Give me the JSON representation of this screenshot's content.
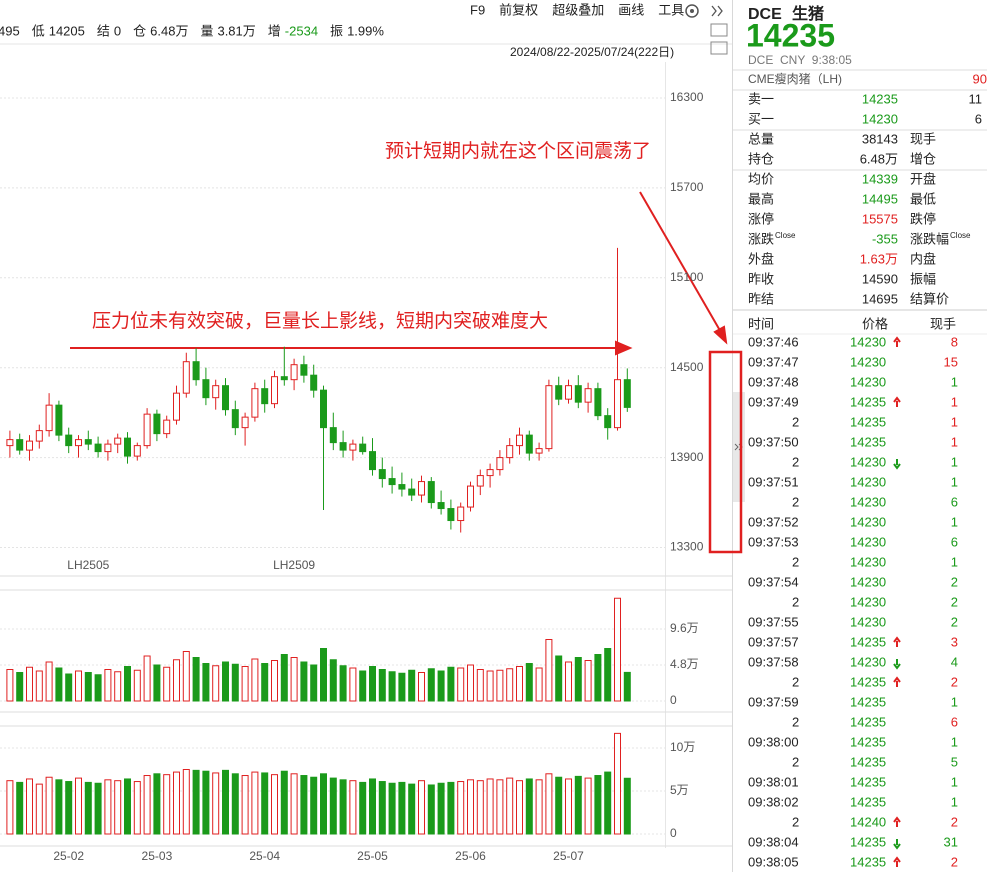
{
  "toolbar": {
    "items": [
      "F9",
      "前复权",
      "超级叠加",
      "画线",
      "工具"
    ]
  },
  "quote_bar": [
    {
      "value": "495"
    },
    {
      "label": "低",
      "value": "14205"
    },
    {
      "label": "结",
      "value": "0"
    },
    {
      "label": "仓",
      "value": "6.48万"
    },
    {
      "label": "量",
      "value": "3.81万"
    },
    {
      "label": "增",
      "value": "-2534",
      "color": "#1a9a1a"
    },
    {
      "label": "振",
      "value": "1.99%"
    }
  ],
  "date_range": "2024/08/22-2025/07/24(222日)",
  "chart_data": [
    {
      "type": "candlestick",
      "up_color": "#e02020",
      "down_color": "#1a9a1a",
      "categories": [
        null,
        null,
        null,
        null,
        null,
        null,
        "25-02",
        null,
        null,
        null,
        null,
        null,
        null,
        null,
        null,
        "25-03",
        null,
        null,
        null,
        null,
        null,
        null,
        null,
        null,
        null,
        null,
        "25-04",
        null,
        null,
        null,
        null,
        null,
        null,
        null,
        null,
        null,
        null,
        "25-05",
        null,
        null,
        null,
        null,
        null,
        null,
        null,
        null,
        null,
        "25-06",
        null,
        null,
        null,
        null,
        null,
        null,
        null,
        null,
        null,
        "25-07",
        null,
        null,
        null,
        null,
        null,
        null
      ],
      "open": [
        13980,
        14020,
        13950,
        14010,
        14080,
        14250,
        14050,
        13980,
        14020,
        13990,
        13940,
        13990,
        14030,
        13910,
        13980,
        14190,
        14060,
        14150,
        14330,
        14540,
        14420,
        14300,
        14380,
        14220,
        14100,
        14170,
        14360,
        14260,
        14440,
        14420,
        14520,
        14450,
        14350,
        14100,
        14000,
        13950,
        13990,
        13940,
        13820,
        13760,
        13720,
        13690,
        13650,
        13740,
        13600,
        13560,
        13480,
        13570,
        13710,
        13780,
        13820,
        13900,
        13980,
        14050,
        13930,
        13960,
        14380,
        14290,
        14380,
        14270,
        14360,
        14180,
        14100,
        14420
      ],
      "high": [
        14080,
        14060,
        14050,
        14120,
        14330,
        14280,
        14100,
        14050,
        14080,
        14040,
        14020,
        14060,
        14070,
        14000,
        14230,
        14220,
        14180,
        14380,
        14600,
        14630,
        14500,
        14420,
        14430,
        14280,
        14200,
        14400,
        14420,
        14480,
        14640,
        14560,
        14580,
        14520,
        14380,
        14200,
        14080,
        14020,
        14040,
        14030,
        13900,
        13840,
        13800,
        13760,
        13780,
        13770,
        13680,
        13620,
        13600,
        13740,
        13820,
        13860,
        13950,
        14030,
        14100,
        14080,
        14000,
        14420,
        14440,
        14420,
        14450,
        14400,
        14400,
        14230,
        15300,
        14495
      ],
      "low": [
        13900,
        13920,
        13880,
        13960,
        14040,
        14010,
        13930,
        13900,
        13950,
        13900,
        13880,
        13930,
        13860,
        13880,
        13960,
        14010,
        14030,
        14120,
        14300,
        14380,
        14250,
        14220,
        14180,
        14050,
        13980,
        14140,
        14200,
        14230,
        14380,
        14350,
        14400,
        14300,
        13550,
        13950,
        13900,
        13880,
        13920,
        13780,
        13700,
        13660,
        13640,
        13610,
        13600,
        13560,
        13520,
        13420,
        13400,
        13540,
        13650,
        13700,
        13780,
        13860,
        13920,
        13880,
        13880,
        13940,
        14250,
        14260,
        14230,
        14200,
        14150,
        14020,
        14080,
        14205
      ],
      "close": [
        14020,
        13950,
        14010,
        14080,
        14250,
        14050,
        13980,
        14020,
        13990,
        13940,
        13990,
        14030,
        13910,
        13980,
        14190,
        14060,
        14150,
        14330,
        14540,
        14420,
        14300,
        14380,
        14220,
        14100,
        14170,
        14360,
        14260,
        14440,
        14420,
        14520,
        14450,
        14350,
        14100,
        14000,
        13950,
        13990,
        13940,
        13820,
        13760,
        13720,
        13690,
        13650,
        13740,
        13600,
        13560,
        13480,
        13570,
        13710,
        13780,
        13820,
        13900,
        13980,
        14050,
        13930,
        13960,
        14380,
        14290,
        14380,
        14270,
        14360,
        14180,
        14100,
        14420,
        14235
      ],
      "ylim": [
        13250,
        16520
      ],
      "yticks": [
        13300,
        13900,
        14500,
        15100,
        15700,
        16300
      ],
      "grid": true,
      "contract_labels": [
        {
          "index": 8,
          "label": "LH2505"
        },
        {
          "index": 29,
          "label": "LH2509"
        }
      ],
      "annotations": [
        "预计短期内就在这个区间震荡了",
        "压力位未有效突破，巨量长上影线，短期内突破难度大"
      ]
    },
    {
      "type": "bar",
      "name": "volume",
      "values": [
        42000,
        38000,
        45000,
        40000,
        52000,
        44000,
        36000,
        40000,
        38000,
        35000,
        42000,
        39000,
        46000,
        41000,
        60000,
        48000,
        45000,
        55000,
        66000,
        58000,
        50000,
        47000,
        52000,
        49000,
        46000,
        56000,
        50000,
        54000,
        62000,
        58000,
        52000,
        48000,
        70000,
        55000,
        47000,
        44000,
        40000,
        46000,
        42000,
        39000,
        37000,
        41000,
        38000,
        43000,
        40000,
        45000,
        44000,
        48000,
        42000,
        40000,
        41000,
        43000,
        46000,
        50000,
        44000,
        82000,
        60000,
        52000,
        58000,
        54000,
        62000,
        70000,
        137000,
        38143
      ],
      "ylim": [
        0,
        140000
      ],
      "yticks": [
        0,
        {
          "value": 48000,
          "label": "4.8万"
        },
        {
          "value": 96000,
          "label": "9.6万"
        }
      ]
    },
    {
      "type": "bar",
      "name": "open-interest",
      "values": [
        62000,
        60000,
        64000,
        58000,
        66000,
        63000,
        61000,
        65000,
        60000,
        59000,
        63000,
        62000,
        64000,
        61000,
        68000,
        70000,
        69000,
        72000,
        75000,
        74000,
        73000,
        71000,
        74000,
        70000,
        68000,
        72000,
        71000,
        69000,
        73000,
        70000,
        68000,
        66000,
        70000,
        65000,
        63000,
        62000,
        60000,
        64000,
        61000,
        59000,
        60000,
        58000,
        62000,
        57000,
        59000,
        60000,
        61000,
        63000,
        62000,
        64000,
        63000,
        65000,
        62000,
        64000,
        63000,
        70000,
        66000,
        64000,
        67000,
        65000,
        68000,
        72000,
        117000,
        64800
      ],
      "ylim": [
        0,
        120000
      ],
      "yticks": [
        0,
        {
          "value": 50000,
          "label": "5万"
        },
        {
          "value": 100000,
          "label": "10万"
        }
      ]
    }
  ],
  "side_panel": {
    "exchange": "DCE",
    "name": "生猪",
    "price": "14235",
    "meta": "DCE  CNY  9:38:05",
    "link": {
      "label": "CME瘦肉猪（LH)",
      "value": "90"
    },
    "quote_rows": [
      {
        "label": "卖一",
        "value": "14235",
        "color": "#1a9a1a",
        "extra": "11"
      },
      {
        "label": "买一",
        "value": "14230",
        "color": "#1a9a1a",
        "extra": "6"
      },
      {
        "label": "总量",
        "value": "38143",
        "color": "#222222",
        "right": "现手"
      },
      {
        "label": "持仓",
        "value": "6.48万",
        "color": "#222222",
        "right": "增仓"
      },
      {
        "label": "均价",
        "value": "14339",
        "color": "#1a9a1a",
        "right": "开盘"
      },
      {
        "label": "最高",
        "value": "14495",
        "color": "#1a9a1a",
        "right": "最低"
      },
      {
        "label": "涨停",
        "value": "15575",
        "color": "#e02020",
        "right": "跌停"
      },
      {
        "label": "涨跌",
        "sup": "Close",
        "value": "-355",
        "color": "#1a9a1a",
        "right": "涨跌幅",
        "right_sup": "Close"
      },
      {
        "label": "外盘",
        "value": "1.63万",
        "color": "#e02020",
        "right": "内盘"
      },
      {
        "label": "昨收",
        "value": "14590",
        "color": "#222222",
        "right": "振幅"
      },
      {
        "label": "昨结",
        "value": "14695",
        "color": "#222222",
        "right": "结算价"
      }
    ],
    "tick_header": [
      "时间",
      "价格",
      "现手"
    ],
    "ticks": [
      {
        "time": "09:37:46",
        "price": "14230",
        "dir": "up",
        "hand": "8",
        "color": "#e02020"
      },
      {
        "time": "09:37:47",
        "price": "14230",
        "hand": "15",
        "color": "#e02020"
      },
      {
        "time": "09:37:48",
        "price": "14230",
        "hand": "1",
        "color": "#1a9a1a"
      },
      {
        "time": "09:37:49",
        "price": "14235",
        "dir": "up",
        "hand": "1",
        "color": "#e02020"
      },
      {
        "sub": "2",
        "price": "14235",
        "hand": "1",
        "color": "#e02020"
      },
      {
        "time": "09:37:50",
        "price": "14235",
        "hand": "1",
        "color": "#e02020"
      },
      {
        "sub": "2",
        "price": "14230",
        "dir": "down",
        "hand": "1",
        "color": "#1a9a1a"
      },
      {
        "time": "09:37:51",
        "price": "14230",
        "hand": "1",
        "color": "#1a9a1a"
      },
      {
        "sub": "2",
        "price": "14230",
        "hand": "6",
        "color": "#1a9a1a"
      },
      {
        "time": "09:37:52",
        "price": "14230",
        "hand": "1",
        "color": "#1a9a1a"
      },
      {
        "time": "09:37:53",
        "price": "14230",
        "hand": "6",
        "color": "#1a9a1a"
      },
      {
        "sub": "2",
        "price": "14230",
        "hand": "1",
        "color": "#1a9a1a"
      },
      {
        "time": "09:37:54",
        "price": "14230",
        "hand": "2",
        "color": "#1a9a1a"
      },
      {
        "sub": "2",
        "price": "14230",
        "hand": "2",
        "color": "#1a9a1a"
      },
      {
        "time": "09:37:55",
        "price": "14230",
        "hand": "2",
        "color": "#1a9a1a"
      },
      {
        "time": "09:37:57",
        "price": "14235",
        "dir": "up",
        "hand": "3",
        "color": "#e02020"
      },
      {
        "time": "09:37:58",
        "price": "14230",
        "dir": "down",
        "hand": "4",
        "color": "#1a9a1a"
      },
      {
        "sub": "2",
        "price": "14235",
        "dir": "up",
        "hand": "2",
        "color": "#e02020"
      },
      {
        "time": "09:37:59",
        "price": "14235",
        "hand": "1",
        "color": "#1a9a1a"
      },
      {
        "sub": "2",
        "price": "14235",
        "hand": "6",
        "color": "#e02020"
      },
      {
        "time": "09:38:00",
        "price": "14235",
        "hand": "1",
        "color": "#1a9a1a"
      },
      {
        "sub": "2",
        "price": "14235",
        "hand": "5",
        "color": "#1a9a1a"
      },
      {
        "time": "09:38:01",
        "price": "14235",
        "hand": "1",
        "color": "#1a9a1a"
      },
      {
        "time": "09:38:02",
        "price": "14235",
        "hand": "1",
        "color": "#1a9a1a"
      },
      {
        "sub": "2",
        "price": "14240",
        "dir": "up",
        "hand": "2",
        "color": "#e02020"
      },
      {
        "time": "09:38:04",
        "price": "14235",
        "dir": "down",
        "hand": "31",
        "color": "#1a9a1a"
      },
      {
        "time": "09:38:05",
        "price": "14235",
        "dir": "up",
        "hand": "2",
        "color": "#e02020"
      }
    ]
  }
}
